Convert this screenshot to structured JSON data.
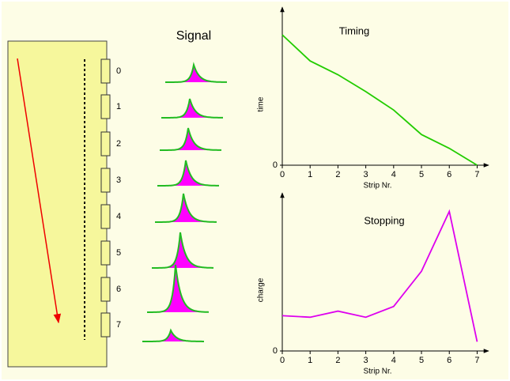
{
  "diagram": {
    "title": "Signal",
    "strips": [
      "0",
      "1",
      "2",
      "3",
      "4",
      "5",
      "6",
      "7"
    ]
  },
  "chart_data": [
    {
      "type": "line",
      "title": "Timing",
      "y_label": "time",
      "x_label": "Strip Nr.",
      "x": [
        0,
        1,
        2,
        3,
        4,
        5,
        6,
        7
      ],
      "values": [
        8.5,
        6.8,
        5.9,
        4.8,
        3.6,
        2.0,
        1.1,
        0
      ],
      "color": "#22cc00",
      "xlim": [
        0,
        7.3
      ],
      "ylim": [
        0,
        10
      ],
      "xticks": [
        0,
        1,
        2,
        3,
        4,
        5,
        6,
        7
      ],
      "yticks": [
        0
      ]
    },
    {
      "type": "line",
      "title": "Stopping",
      "y_label": "charge",
      "x_label": "Strip Nr.",
      "x": [
        0,
        1,
        2,
        3,
        4,
        5,
        6,
        7
      ],
      "values": [
        2.3,
        2.2,
        2.6,
        2.2,
        2.9,
        5.2,
        9.1,
        0.6
      ],
      "color": "#dd00ee",
      "xlim": [
        0,
        7.3
      ],
      "ylim": [
        0,
        10
      ],
      "xticks": [
        0,
        1,
        2,
        3,
        4,
        5,
        6,
        7
      ],
      "yticks": [
        0
      ]
    }
  ]
}
